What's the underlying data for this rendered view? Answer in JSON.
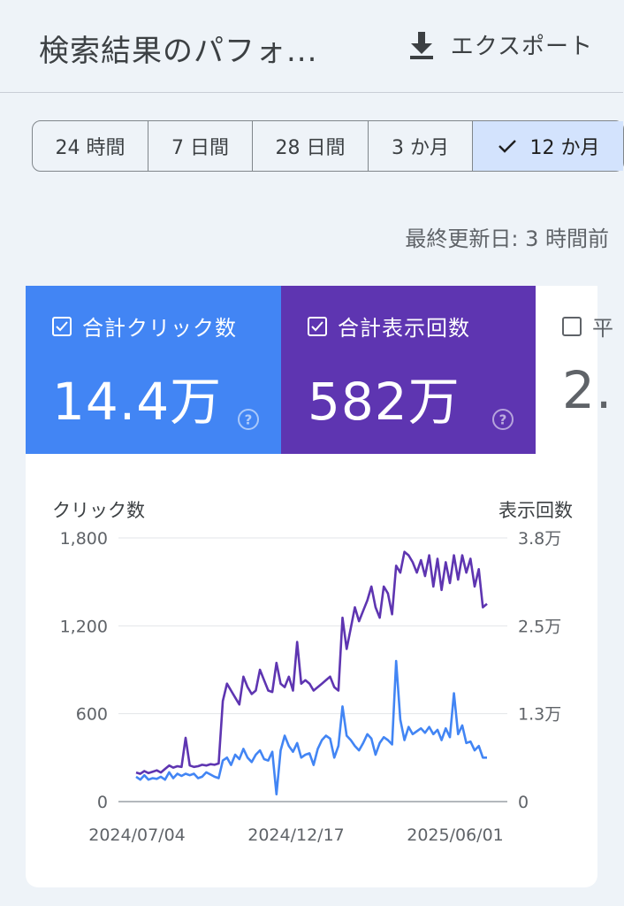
{
  "header": {
    "title": "検索結果のパフォ...",
    "export_label": "エクスポート"
  },
  "date_ranges": [
    {
      "label": "24 時間",
      "selected": false
    },
    {
      "label": "7 日間",
      "selected": false
    },
    {
      "label": "28 日間",
      "selected": false
    },
    {
      "label": "3 か月",
      "selected": false
    },
    {
      "label": "12 か月",
      "selected": true
    }
  ],
  "last_updated": "最終更新日: 3 時間前",
  "metrics": {
    "clicks": {
      "label": "合計クリック数",
      "value": "14.4万",
      "checked": true
    },
    "impressions": {
      "label": "合計表示回数",
      "value": "582万",
      "checked": true
    },
    "ctr": {
      "label": "平",
      "value": "2.",
      "checked": false
    }
  },
  "colors": {
    "clicks": "#4285f4",
    "impressions": "#5e35b1",
    "selected_range": "#d3e3fd"
  },
  "chart_data": {
    "type": "line",
    "y_left_label": "クリック数",
    "y_right_label": "表示回数",
    "y_left_ticks": [
      "1,800",
      "1,200",
      "600",
      "0"
    ],
    "y_right_ticks": [
      "3.8万",
      "2.5万",
      "1.3万",
      "0"
    ],
    "x_tick_labels": [
      "2024/07/04",
      "2024/12/17",
      "2025/06/01"
    ],
    "y_left_range": [
      0,
      1800
    ],
    "y_right_range": [
      0,
      38000
    ],
    "grid": true,
    "series": [
      {
        "name": "合計表示回数",
        "axis": "right",
        "color": "#5e35b1",
        "values": [
          4200,
          4000,
          4400,
          4100,
          4300,
          4500,
          4200,
          4700,
          5200,
          4900,
          5100,
          5000,
          9200,
          5200,
          5000,
          5100,
          5300,
          5200,
          5400,
          5300,
          5500,
          14500,
          17000,
          16000,
          15000,
          14000,
          18000,
          16500,
          15500,
          16000,
          19000,
          17500,
          16000,
          15800,
          20000,
          17000,
          16500,
          18000,
          16000,
          23000,
          17000,
          17500,
          17000,
          16000,
          16500,
          17000,
          17500,
          18000,
          16500,
          16000,
          26500,
          22000,
          25000,
          28000,
          26000,
          27500,
          29000,
          31000,
          28000,
          26500,
          31000,
          30000,
          27000,
          34000,
          33000,
          36000,
          35500,
          34500,
          33000,
          34800,
          32500,
          35500,
          31000,
          35000,
          30500,
          34500,
          31500,
          35500,
          32000,
          35500,
          33000,
          35000,
          31000,
          33500,
          28000,
          28500
        ]
      },
      {
        "name": "合計クリック数",
        "axis": "left",
        "color": "#4285f4",
        "values": [
          170,
          150,
          180,
          150,
          160,
          155,
          170,
          150,
          200,
          160,
          190,
          175,
          190,
          180,
          190,
          160,
          170,
          200,
          185,
          170,
          160,
          280,
          300,
          250,
          320,
          290,
          360,
          300,
          270,
          320,
          350,
          290,
          280,
          340,
          50,
          350,
          450,
          380,
          340,
          400,
          300,
          320,
          330,
          250,
          360,
          420,
          450,
          430,
          300,
          380,
          650,
          450,
          420,
          380,
          350,
          400,
          460,
          430,
          320,
          400,
          440,
          420,
          390,
          960,
          560,
          420,
          510,
          460,
          480,
          500,
          470,
          510,
          460,
          490,
          420,
          500,
          440,
          740,
          460,
          520,
          400,
          410,
          350,
          380,
          300,
          300
        ]
      }
    ]
  }
}
